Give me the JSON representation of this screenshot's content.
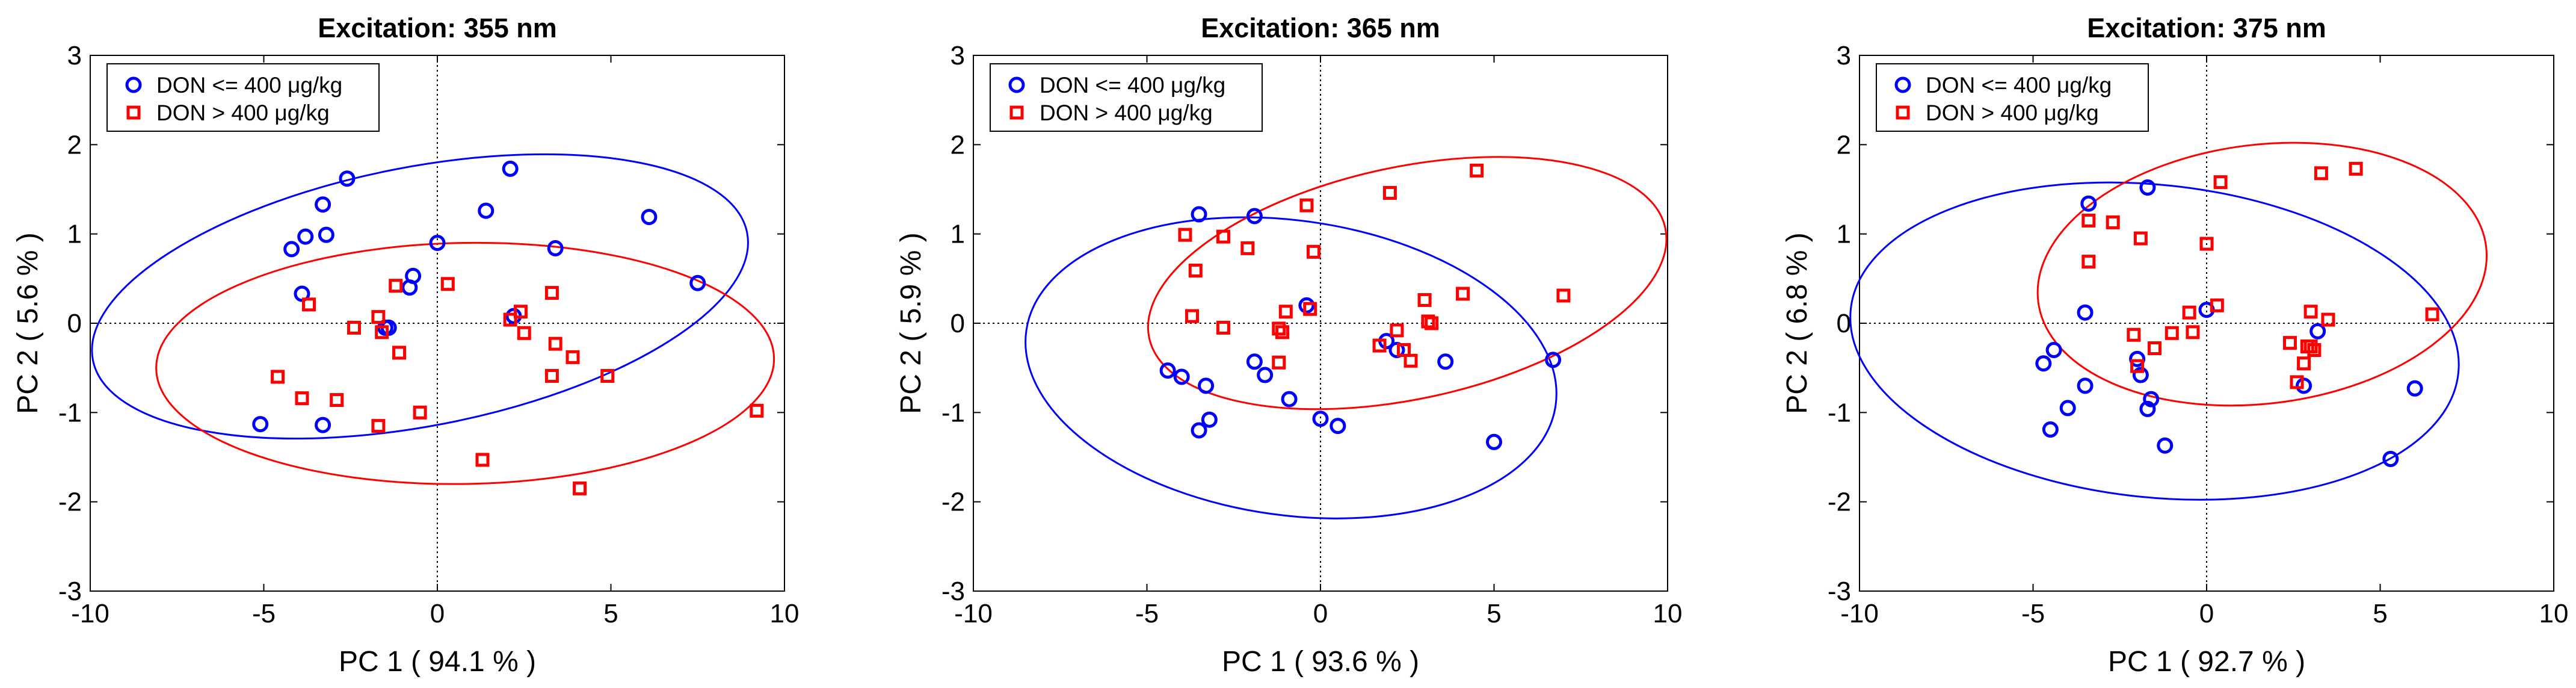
{
  "chart_data": [
    {
      "type": "scatter",
      "title": "Excitation: 355 nm",
      "xlabel": "PC 1  ( 94.1 % )",
      "ylabel": "PC 2  ( 5.6 % )",
      "xlim": [
        -10,
        10
      ],
      "ylim": [
        -3,
        3
      ],
      "xticks": [
        -10,
        -5,
        0,
        5,
        10
      ],
      "yticks": [
        -3,
        -2,
        -1,
        0,
        1,
        2,
        3
      ],
      "legend_position": "top-left",
      "series": [
        {
          "name": "DON <= 400 μg/kg",
          "marker": "circle",
          "color": "#0000ff",
          "ellipse": {
            "cx": -0.5,
            "cy": 0.3,
            "rx": 9.6,
            "ry": 1.45,
            "angle_deg": 11
          },
          "points": [
            [
              -2.6,
              1.62
            ],
            [
              -3.3,
              1.33
            ],
            [
              -3.8,
              0.97
            ],
            [
              -3.2,
              0.99
            ],
            [
              -4.2,
              0.83
            ],
            [
              -3.9,
              0.33
            ],
            [
              -0.7,
              0.53
            ],
            [
              -0.8,
              0.4
            ],
            [
              0.0,
              0.9
            ],
            [
              -1.5,
              -0.05
            ],
            [
              -1.4,
              -0.05
            ],
            [
              -3.3,
              -1.14
            ],
            [
              -5.1,
              -1.13
            ],
            [
              2.1,
              1.73
            ],
            [
              1.4,
              1.26
            ],
            [
              3.4,
              0.84
            ],
            [
              2.2,
              0.08
            ],
            [
              6.1,
              1.19
            ],
            [
              7.5,
              0.45
            ]
          ]
        },
        {
          "name": "DON > 400 μg/kg",
          "marker": "square",
          "color": "#ff0000",
          "ellipse": {
            "cx": 0.8,
            "cy": -0.45,
            "rx": 8.9,
            "ry": 1.35,
            "angle_deg": 1
          },
          "points": [
            [
              -3.7,
              0.21
            ],
            [
              -4.6,
              -0.6
            ],
            [
              -3.9,
              -0.84
            ],
            [
              -2.9,
              -0.86
            ],
            [
              -2.4,
              -0.05
            ],
            [
              -1.7,
              0.07
            ],
            [
              -1.6,
              -0.1
            ],
            [
              -1.7,
              -1.15
            ],
            [
              -1.1,
              -0.33
            ],
            [
              -1.2,
              0.42
            ],
            [
              -0.5,
              -1.0
            ],
            [
              0.3,
              0.44
            ],
            [
              1.3,
              -1.53
            ],
            [
              2.1,
              0.04
            ],
            [
              2.4,
              0.13
            ],
            [
              2.5,
              -0.11
            ],
            [
              3.3,
              0.34
            ],
            [
              3.4,
              -0.23
            ],
            [
              3.9,
              -0.38
            ],
            [
              3.3,
              -0.59
            ],
            [
              4.9,
              -0.59
            ],
            [
              4.1,
              -1.85
            ],
            [
              9.2,
              -0.98
            ]
          ]
        }
      ]
    },
    {
      "type": "scatter",
      "title": "Excitation: 365 nm",
      "xlabel": "PC 1  ( 93.6 % )",
      "ylabel": "PC 2  ( 5.9 % )",
      "xlim": [
        -10,
        10
      ],
      "ylim": [
        -3,
        3
      ],
      "xticks": [
        -10,
        -5,
        0,
        5,
        10
      ],
      "yticks": [
        -3,
        -2,
        -1,
        0,
        1,
        2,
        3
      ],
      "legend_position": "top-left",
      "series": [
        {
          "name": "DON <= 400 μg/kg",
          "marker": "circle",
          "color": "#0000ff",
          "ellipse": {
            "cx": -0.85,
            "cy": -0.5,
            "rx": 7.7,
            "ry": 1.65,
            "angle_deg": -8
          },
          "points": [
            [
              -3.5,
              1.22
            ],
            [
              -1.9,
              1.2
            ],
            [
              -4.4,
              -0.53
            ],
            [
              -4.0,
              -0.6
            ],
            [
              -3.3,
              -0.7
            ],
            [
              -3.5,
              -1.2
            ],
            [
              -3.2,
              -1.08
            ],
            [
              -1.9,
              -0.43
            ],
            [
              -1.6,
              -0.58
            ],
            [
              -0.9,
              -0.85
            ],
            [
              -0.4,
              0.2
            ],
            [
              0.0,
              -1.07
            ],
            [
              0.5,
              -1.15
            ],
            [
              1.9,
              -0.2
            ],
            [
              2.2,
              -0.3
            ],
            [
              3.6,
              -0.43
            ],
            [
              5.0,
              -1.33
            ],
            [
              6.7,
              -0.41
            ]
          ]
        },
        {
          "name": "DON > 400 μg/kg",
          "marker": "square",
          "color": "#ff0000",
          "ellipse": {
            "cx": 2.5,
            "cy": 0.45,
            "rx": 7.6,
            "ry": 1.3,
            "angle_deg": 12
          },
          "points": [
            [
              -3.9,
              0.99
            ],
            [
              -3.6,
              0.59
            ],
            [
              -3.7,
              0.08
            ],
            [
              -2.8,
              0.97
            ],
            [
              -2.8,
              -0.05
            ],
            [
              -2.1,
              0.84
            ],
            [
              -1.0,
              0.13
            ],
            [
              -1.2,
              -0.06
            ],
            [
              -1.1,
              -0.1
            ],
            [
              -1.2,
              -0.44
            ],
            [
              -0.4,
              1.32
            ],
            [
              -0.2,
              0.8
            ],
            [
              -0.3,
              0.16
            ],
            [
              2.0,
              1.46
            ],
            [
              1.7,
              -0.25
            ],
            [
              2.2,
              -0.08
            ],
            [
              2.6,
              -0.42
            ],
            [
              2.4,
              -0.3
            ],
            [
              3.0,
              0.26
            ],
            [
              3.1,
              0.02
            ],
            [
              3.2,
              0.0
            ],
            [
              4.1,
              0.33
            ],
            [
              4.5,
              1.71
            ],
            [
              7.0,
              0.31
            ]
          ]
        }
      ]
    },
    {
      "type": "scatter",
      "title": "Excitation: 375 nm",
      "xlabel": "PC 1  ( 92.7 % )",
      "ylabel": "PC 2  ( 6.8 % )",
      "xlim": [
        -10,
        10
      ],
      "ylim": [
        -3,
        3
      ],
      "xticks": [
        -10,
        -5,
        0,
        5,
        10
      ],
      "yticks": [
        -3,
        -2,
        -1,
        0,
        1,
        2,
        3
      ],
      "legend_position": "top-left",
      "series": [
        {
          "name": "DON <= 400 μg/kg",
          "marker": "circle",
          "color": "#0000ff",
          "ellipse": {
            "cx": -1.5,
            "cy": -0.2,
            "rx": 8.8,
            "ry": 1.75,
            "angle_deg": -6
          },
          "points": [
            [
              -3.4,
              1.34
            ],
            [
              -1.7,
              1.52
            ],
            [
              -3.5,
              0.12
            ],
            [
              -4.7,
              -0.45
            ],
            [
              -4.4,
              -0.3
            ],
            [
              -3.5,
              -0.7
            ],
            [
              -4.0,
              -0.95
            ],
            [
              -4.5,
              -1.19
            ],
            [
              -1.9,
              -0.58
            ],
            [
              -2.0,
              -0.4
            ],
            [
              -1.6,
              -0.85
            ],
            [
              -1.7,
              -0.96
            ],
            [
              -1.2,
              -1.37
            ],
            [
              0.0,
              0.15
            ],
            [
              2.8,
              -0.7
            ],
            [
              3.2,
              -0.09
            ],
            [
              5.3,
              -1.52
            ],
            [
              6.0,
              -0.73
            ]
          ]
        },
        {
          "name": "DON > 400 μg/kg",
          "marker": "square",
          "color": "#ff0000",
          "ellipse": {
            "cx": 1.6,
            "cy": 0.55,
            "rx": 6.5,
            "ry": 1.45,
            "angle_deg": 7
          },
          "points": [
            [
              -3.4,
              1.15
            ],
            [
              -3.4,
              0.69
            ],
            [
              -2.7,
              1.13
            ],
            [
              -1.9,
              0.95
            ],
            [
              -2.1,
              -0.13
            ],
            [
              -2.0,
              -0.48
            ],
            [
              -1.5,
              -0.28
            ],
            [
              -1.0,
              -0.11
            ],
            [
              -0.4,
              -0.1
            ],
            [
              -0.5,
              0.12
            ],
            [
              0.0,
              0.89
            ],
            [
              0.3,
              0.2
            ],
            [
              0.4,
              1.58
            ],
            [
              3.3,
              1.68
            ],
            [
              4.3,
              1.73
            ],
            [
              2.4,
              -0.22
            ],
            [
              2.9,
              -0.26
            ],
            [
              2.8,
              -0.45
            ],
            [
              3.0,
              -0.26
            ],
            [
              3.1,
              -0.3
            ],
            [
              2.6,
              -0.66
            ],
            [
              3.0,
              0.13
            ],
            [
              3.5,
              0.04
            ],
            [
              6.5,
              0.1
            ]
          ]
        }
      ]
    }
  ]
}
